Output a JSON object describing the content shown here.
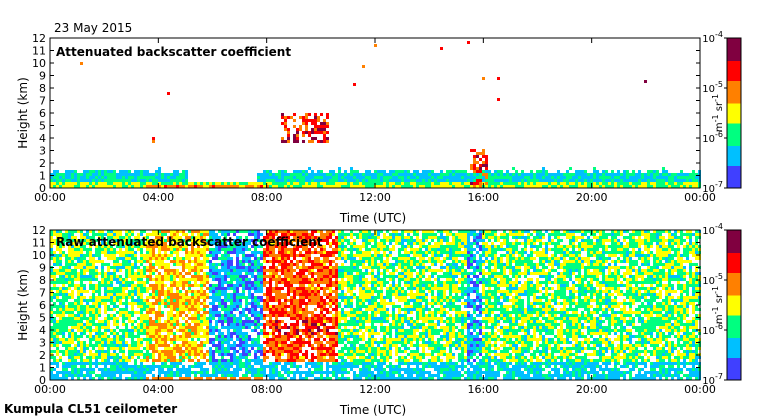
{
  "date_label": "23 May 2015",
  "footer_label": "Kumpula CL51 ceilometer",
  "chart_data": [
    {
      "type": "heatmap",
      "title": "Attenuated backscatter coefficient",
      "xlabel": "Time (UTC)",
      "ylabel": "Height (km)",
      "x_ticks": [
        "00:00",
        "04:00",
        "08:00",
        "12:00",
        "16:00",
        "20:00",
        "00:00"
      ],
      "x_tick_hours": [
        0,
        4,
        8,
        12,
        16,
        20,
        24
      ],
      "y_ticks": [
        0,
        1,
        2,
        3,
        4,
        5,
        6,
        7,
        8,
        9,
        10,
        11,
        12
      ],
      "xlim_hours": [
        0,
        24
      ],
      "ylim_km": [
        0,
        12
      ],
      "colorbar": {
        "scale": "log",
        "range": [
          1e-07,
          0.0001
        ],
        "ticks": [
          {
            "base": "10",
            "exp": "-4"
          },
          {
            "base": "10",
            "exp": "-5"
          },
          {
            "base": "10",
            "exp": "-6"
          },
          {
            "base": "10",
            "exp": "-7"
          }
        ],
        "unit_label": {
          "m": "m",
          "m_exp": "-1",
          "sr": "sr",
          "sr_exp": "-1"
        },
        "colors": [
          "#ffffff",
          "#4040ff",
          "#00c0ff",
          "#00ff80",
          "#ffff00",
          "#ff8000",
          "#ff0000",
          "#800040"
        ]
      },
      "features": {
        "boundary_layer_km": [
          0,
          1.3
        ],
        "cloud_segments": [
          {
            "start_hour": 3.7,
            "end_hour": 3.85,
            "base_km": 3.6,
            "top_km": 4.3
          },
          {
            "start_hour": 8.5,
            "end_hour": 10.2,
            "base_km": 3.7,
            "top_km": 6.2
          },
          {
            "start_hour": 15.5,
            "end_hour": 16.1,
            "base_km": 0.0,
            "top_km": 3.3
          }
        ]
      }
    },
    {
      "type": "heatmap",
      "title": "Raw attenuated backscatter coefficient",
      "xlabel": "Time (UTC)",
      "ylabel": "Height (km)",
      "x_ticks": [
        "00:00",
        "04:00",
        "08:00",
        "12:00",
        "16:00",
        "20:00",
        "00:00"
      ],
      "x_tick_hours": [
        0,
        4,
        8,
        12,
        16,
        20,
        24
      ],
      "y_ticks": [
        0,
        1,
        2,
        3,
        4,
        5,
        6,
        7,
        8,
        9,
        10,
        11,
        12
      ],
      "xlim_hours": [
        0,
        24
      ],
      "ylim_km": [
        0,
        12
      ],
      "colorbar": {
        "scale": "log",
        "range": [
          1e-07,
          0.0001
        ],
        "ticks": [
          {
            "base": "10",
            "exp": "-4"
          },
          {
            "base": "10",
            "exp": "-5"
          },
          {
            "base": "10",
            "exp": "-6"
          },
          {
            "base": "10",
            "exp": "-7"
          }
        ],
        "unit_label": {
          "m": "m",
          "m_exp": "-1",
          "sr": "sr",
          "sr_exp": "-1"
        },
        "colors": [
          "#ffffff",
          "#4040ff",
          "#00c0ff",
          "#00ff80",
          "#ffff00",
          "#ff8000",
          "#ff0000",
          "#800040"
        ]
      },
      "features": {
        "noise_bands": [
          {
            "start_hour": 3.5,
            "end_hour": 5.8,
            "level": "high"
          },
          {
            "start_hour": 5.8,
            "end_hour": 7.8,
            "level": "low"
          },
          {
            "start_hour": 7.8,
            "end_hour": 10.6,
            "level": "very_high"
          },
          {
            "start_hour": 15.3,
            "end_hour": 15.9,
            "level": "low"
          }
        ],
        "cloud_layer": {
          "start_hour": 8.2,
          "end_hour": 10.6,
          "base_km": 3.7,
          "top_km": 5.0
        }
      }
    }
  ]
}
